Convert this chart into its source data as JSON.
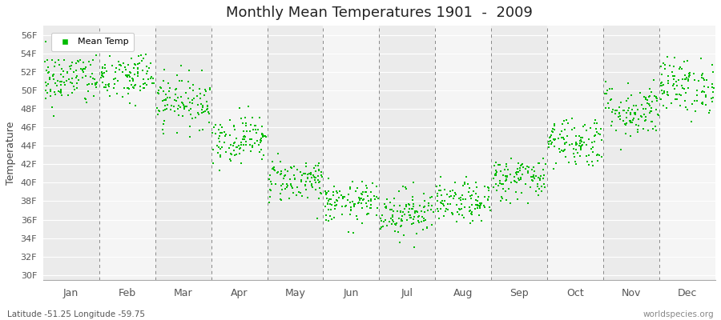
{
  "title": "Monthly Mean Temperatures 1901  -  2009",
  "ylabel": "Temperature",
  "xlabel_months": [
    "Jan",
    "Feb",
    "Mar",
    "Apr",
    "May",
    "Jun",
    "Jul",
    "Aug",
    "Sep",
    "Oct",
    "Nov",
    "Dec"
  ],
  "yticks": [
    30,
    32,
    34,
    36,
    38,
    40,
    42,
    44,
    46,
    48,
    50,
    52,
    54,
    56
  ],
  "ytick_labels": [
    "30F",
    "32F",
    "34F",
    "36F",
    "38F",
    "40F",
    "42F",
    "44F",
    "46F",
    "48F",
    "50F",
    "52F",
    "54F",
    "56F"
  ],
  "ylim": [
    29.5,
    57
  ],
  "dot_color": "#00bb00",
  "bg_color": "#ffffff",
  "band_colors": [
    "#ebebeb",
    "#f5f5f5"
  ],
  "subtitle_left": "Latitude -51.25 Longitude -59.75",
  "subtitle_right": "worldspecies.org",
  "legend_label": "Mean Temp",
  "mean_temps_F": [
    51.2,
    51.5,
    48.8,
    44.8,
    40.3,
    37.8,
    36.8,
    37.8,
    40.5,
    44.5,
    47.8,
    50.5
  ],
  "std_devs": [
    1.5,
    1.5,
    1.4,
    1.3,
    1.2,
    1.1,
    1.3,
    1.1,
    1.2,
    1.4,
    1.5,
    1.5
  ],
  "n_years": 109
}
